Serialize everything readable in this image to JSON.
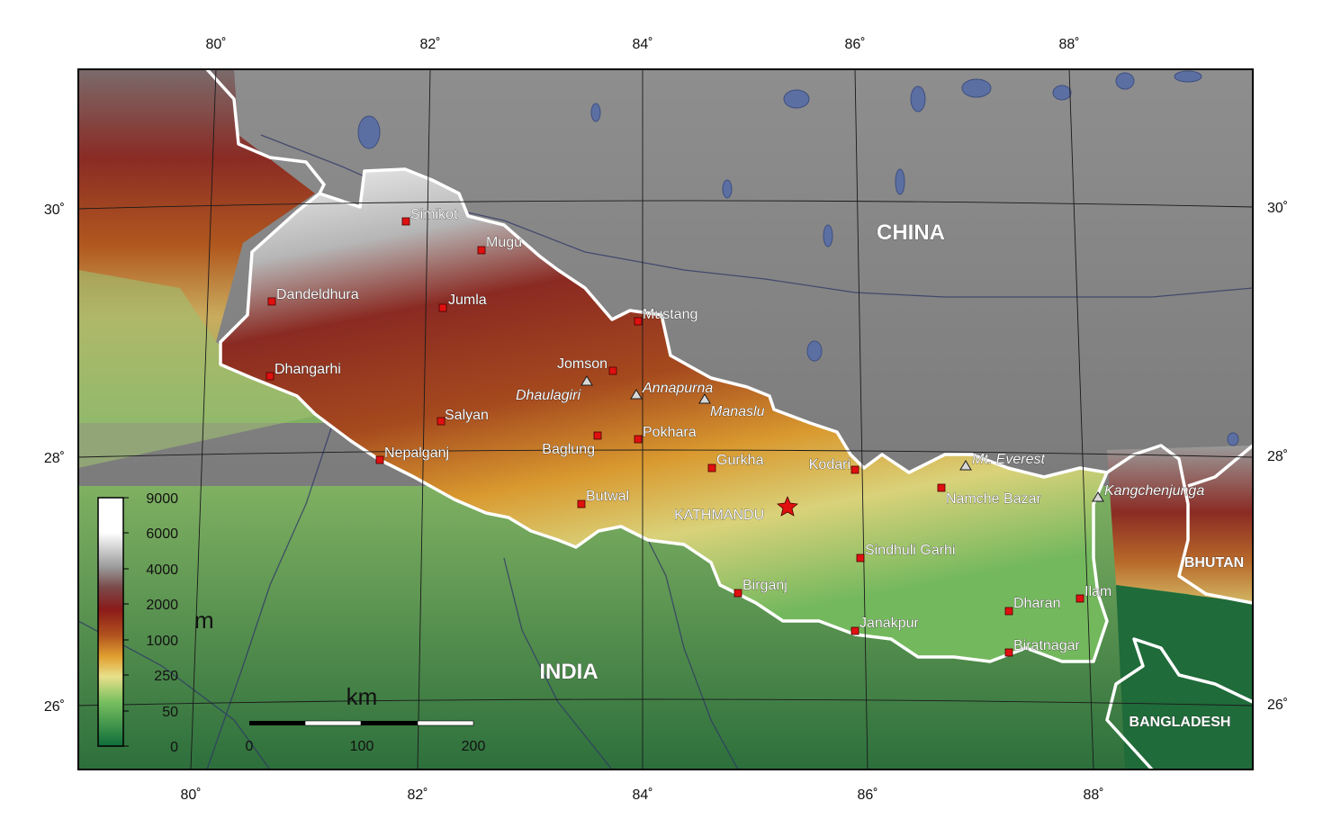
{
  "map": {
    "longitude_ticks_top": [
      "80˚",
      "82˚",
      "84˚",
      "86˚",
      "88˚"
    ],
    "longitude_ticks_bottom": [
      "80˚",
      "82˚",
      "84˚",
      "86˚",
      "88˚"
    ],
    "latitude_ticks_left": [
      "30˚",
      "28˚",
      "26˚"
    ],
    "latitude_ticks_right": [
      "30˚",
      "28˚",
      "26˚"
    ],
    "countries": {
      "china": "CHINA",
      "india": "INDIA",
      "bhutan": "BHUTAN",
      "bangladesh": "BANGLADESH"
    },
    "cities": [
      {
        "name": "Simikot"
      },
      {
        "name": "Mugu"
      },
      {
        "name": "Dandeldhura"
      },
      {
        "name": "Jumla"
      },
      {
        "name": "Mustang"
      },
      {
        "name": "Dhangarhi"
      },
      {
        "name": "Jomson"
      },
      {
        "name": "Salyan"
      },
      {
        "name": "Pokhara"
      },
      {
        "name": "Baglung"
      },
      {
        "name": "Nepalganj"
      },
      {
        "name": "Gurkha"
      },
      {
        "name": "Kodari"
      },
      {
        "name": "Butwal"
      },
      {
        "name": "Namche Bazar"
      },
      {
        "name": "Sindhuli Garhi"
      },
      {
        "name": "Birganj"
      },
      {
        "name": "Dharan"
      },
      {
        "name": "Ilam"
      },
      {
        "name": "Janakpur"
      },
      {
        "name": "Biratnagar"
      }
    ],
    "capital": "KATHMANDU",
    "peaks": [
      "Dhaulagiri",
      "Annapurna",
      "Manaslu",
      "Mt. Everest",
      "Kangchenjunga"
    ],
    "legend": {
      "unit": "m",
      "values": [
        "9000",
        "6000",
        "4000",
        "2000",
        "1000",
        "250",
        "50",
        "0"
      ]
    },
    "scale_bar": {
      "unit": "km",
      "labels": [
        "0",
        "100",
        "200"
      ]
    },
    "colors": {
      "lowland": "#2e8b57",
      "plain": "#c9d98a",
      "foothill": "#d99a3a",
      "hill": "#a34a1f",
      "mountain": "#7a1c1c",
      "highmountain": "#9a9a9a",
      "snow": "#ffffff",
      "lake": "#5c6fa3",
      "city_marker": "#e01010"
    }
  }
}
